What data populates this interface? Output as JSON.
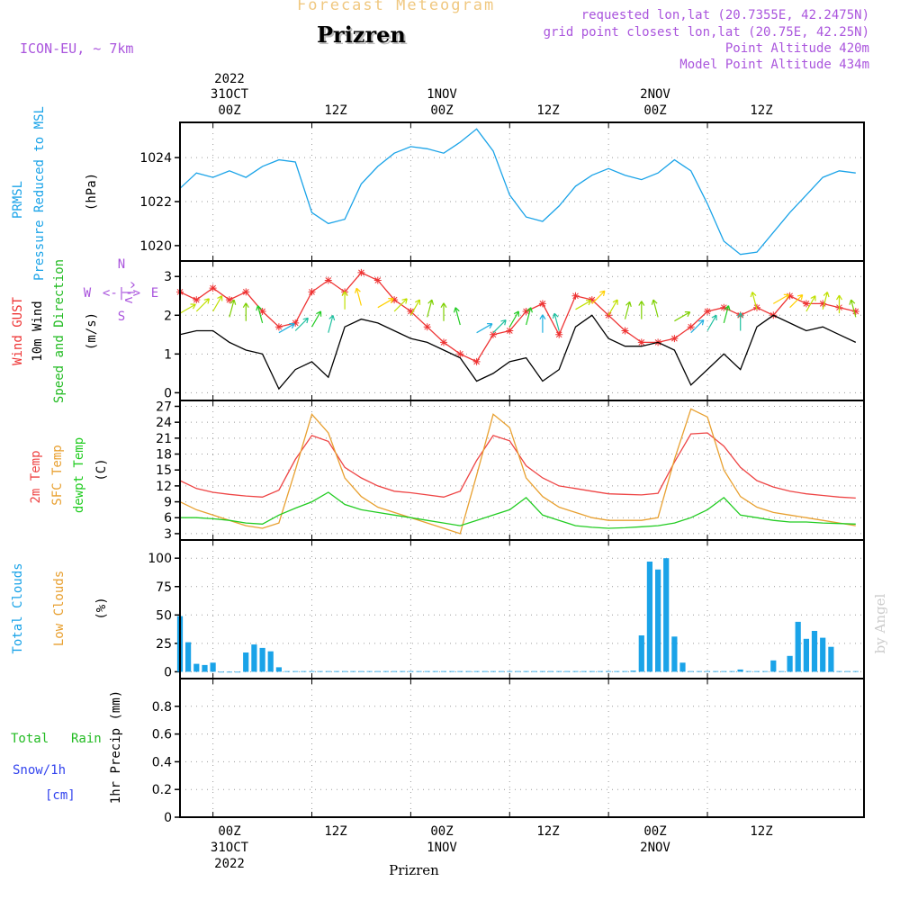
{
  "header": {
    "title_small": "Forecast Meteogram",
    "title": "Prizren",
    "model": "ICON-EU, ~ 7km",
    "requested": "requested lon,lat (20.7355E, 42.2475N)",
    "grid_point": "grid point closest lon,lat (20.75E, 42.25N)",
    "point_alt": "Point Altitude 420m",
    "model_alt": "Model Point Altitude 434m",
    "footer": "Prizren",
    "credit": "by Angel"
  },
  "colors": {
    "pressure": "#1aa3e8",
    "gust": "#ee3333",
    "wind": "#000000",
    "temp": "#ee4444",
    "sfc": "#e8a030",
    "dew": "#22cc22",
    "clouds": "#1aa3e8",
    "purple": "#aa55dd",
    "green_label": "#22bb22",
    "blue_label": "#3344ee"
  },
  "time_axis": {
    "top": {
      "year": "2022",
      "labels": [
        {
          "day": "31OCT",
          "hour": "00Z"
        },
        {
          "day": "",
          "hour": "12Z"
        },
        {
          "day": "1NOV",
          "hour": "00Z"
        },
        {
          "day": "",
          "hour": "12Z"
        },
        {
          "day": "2NOV",
          "hour": "00Z"
        },
        {
          "day": "",
          "hour": "12Z"
        }
      ]
    },
    "bottom": {
      "hours": [
        "00Z",
        "12Z",
        "00Z",
        "12Z",
        "00Z",
        "12Z"
      ],
      "days": [
        "31OCT",
        "1NOV",
        "2NOV"
      ],
      "year": "2022"
    }
  },
  "panel_labels": {
    "pressure": {
      "name": "PRMSL",
      "desc": "Pressure Reduced to MSL",
      "unit": "(hPa)"
    },
    "wind": {
      "gust": "Wind GUST",
      "wind": "10m Wind",
      "dir": "Speed and Direction",
      "unit": "(m/s)",
      "compass": {
        "n": "N",
        "s": "S",
        "w": "W",
        "e": "E",
        "arrow_we": "<-|->",
        "vert": "^|v"
      }
    },
    "temp": {
      "t2m": "2m Temp",
      "sfc": "SFC Temp",
      "dew": "dewpt Temp",
      "unit": "(C)"
    },
    "clouds": {
      "total": "Total Clouds",
      "low": "Low Clouds",
      "unit": "(%)"
    },
    "precip": {
      "rain_total": "Total",
      "rain": "Rain",
      "snow": "Snow/1h",
      "snow_unit": "[cm]",
      "ylabel": "1hr Precip (mm)"
    }
  },
  "chart_data": [
    {
      "type": "line",
      "title": "PRMSL Pressure Reduced to MSL",
      "ylabel": "(hPa)",
      "ylim": [
        1019.3,
        1025.6
      ],
      "yticks": [
        "1020",
        "1022",
        "1024"
      ],
      "x_hours": [
        -4,
        -2,
        0,
        2,
        4,
        6,
        8,
        10,
        12,
        14,
        16,
        18,
        20,
        22,
        24,
        26,
        28,
        30,
        32,
        34,
        36,
        38,
        40,
        42,
        44,
        46,
        48,
        50,
        52,
        54,
        56,
        58,
        60,
        62,
        64,
        66,
        68,
        70,
        72,
        74,
        76,
        78
      ],
      "series": [
        {
          "name": "PRMSL",
          "values": [
            1022.6,
            1023.3,
            1023.1,
            1023.4,
            1023.1,
            1023.6,
            1023.9,
            1023.8,
            1021.5,
            1021.0,
            1021.2,
            1022.8,
            1023.6,
            1024.2,
            1024.5,
            1024.4,
            1024.2,
            1024.7,
            1025.3,
            1024.3,
            1022.3,
            1021.3,
            1021.1,
            1021.8,
            1022.7,
            1023.2,
            1023.5,
            1023.2,
            1023.0,
            1023.3,
            1023.9,
            1023.4,
            1021.9,
            1020.2,
            1019.6,
            1019.7,
            1020.6,
            1021.5,
            1022.3,
            1023.1,
            1023.4,
            1023.3
          ]
        }
      ]
    },
    {
      "type": "line",
      "title": "Wind GUST / 10m Wind Speed and Direction",
      "ylabel": "(m/s)",
      "ylim": [
        -0.2,
        3.4
      ],
      "yticks": [
        "0",
        "1",
        "2",
        "3"
      ],
      "x_hours": [
        -4,
        -2,
        0,
        2,
        4,
        6,
        8,
        10,
        12,
        14,
        16,
        18,
        20,
        22,
        24,
        26,
        28,
        30,
        32,
        34,
        36,
        38,
        40,
        42,
        44,
        46,
        48,
        50,
        52,
        54,
        56,
        58,
        60,
        62,
        64,
        66,
        68,
        70,
        72,
        74,
        76,
        78
      ],
      "series": [
        {
          "name": "Wind GUST",
          "values": [
            2.6,
            2.4,
            2.7,
            2.4,
            2.6,
            2.1,
            1.7,
            1.8,
            2.6,
            2.9,
            2.6,
            3.1,
            2.9,
            2.4,
            2.1,
            1.7,
            1.3,
            1.0,
            0.8,
            1.5,
            1.6,
            2.1,
            2.3,
            1.5,
            2.5,
            2.4,
            2.0,
            1.6,
            1.3,
            1.3,
            1.4,
            1.7,
            2.1,
            2.2,
            2.0,
            2.2,
            2.0,
            2.5,
            2.3,
            2.3,
            2.2,
            2.1
          ]
        },
        {
          "name": "10m Wind",
          "values": [
            1.5,
            1.6,
            1.6,
            1.3,
            1.1,
            1.0,
            0.1,
            0.6,
            0.8,
            0.4,
            1.7,
            1.9,
            1.8,
            1.6,
            1.4,
            1.3,
            1.1,
            0.9,
            0.3,
            0.5,
            0.8,
            0.9,
            0.3,
            0.6,
            1.7,
            2.0,
            1.4,
            1.2,
            1.2,
            1.3,
            1.1,
            0.2,
            0.6,
            1.0,
            0.6,
            1.7,
            2.0,
            1.8,
            1.6,
            1.7,
            1.5,
            1.3
          ]
        }
      ]
    },
    {
      "type": "line",
      "title": "2m Temp / SFC Temp / dewpt Temp",
      "ylabel": "(C)",
      "ylim": [
        1.8,
        28.1
      ],
      "yticks": [
        "3",
        "6",
        "9",
        "12",
        "15",
        "18",
        "21",
        "24",
        "27"
      ],
      "x_hours": [
        -4,
        -2,
        0,
        2,
        4,
        6,
        8,
        10,
        12,
        14,
        16,
        18,
        20,
        22,
        24,
        26,
        28,
        30,
        32,
        34,
        36,
        38,
        40,
        42,
        44,
        46,
        48,
        50,
        52,
        54,
        56,
        58,
        60,
        62,
        64,
        66,
        68,
        70,
        72,
        74,
        76,
        78
      ],
      "series": [
        {
          "name": "2m Temp",
          "values": [
            13.0,
            11.5,
            10.8,
            10.4,
            10.1,
            9.9,
            11.2,
            17.0,
            21.5,
            20.4,
            15.5,
            13.5,
            12.0,
            11.0,
            10.7,
            10.3,
            9.9,
            11.0,
            16.8,
            21.5,
            20.5,
            15.8,
            13.5,
            12.0,
            11.5,
            11.0,
            10.5,
            10.4,
            10.3,
            10.6,
            16.5,
            21.8,
            22.0,
            19.5,
            15.5,
            13.0,
            11.8,
            11.0,
            10.5,
            10.2,
            9.9,
            9.7
          ]
        },
        {
          "name": "SFC Temp",
          "values": [
            9.0,
            7.5,
            6.5,
            5.5,
            4.5,
            4.0,
            5.0,
            15.0,
            25.5,
            22.0,
            13.5,
            10.0,
            8.0,
            7.0,
            6.0,
            5.0,
            4.0,
            3.0,
            14.0,
            25.5,
            23.0,
            13.5,
            10.0,
            8.0,
            7.0,
            6.0,
            5.5,
            5.5,
            5.5,
            6.0,
            17.0,
            26.5,
            25.0,
            15.0,
            10.0,
            8.0,
            7.0,
            6.5,
            6.0,
            5.5,
            5.0,
            4.5
          ]
        },
        {
          "name": "dewpt Temp",
          "values": [
            6.0,
            6.0,
            5.8,
            5.5,
            5.0,
            4.8,
            6.5,
            7.8,
            9.0,
            10.8,
            8.5,
            7.5,
            7.0,
            6.5,
            6.0,
            5.5,
            5.0,
            4.5,
            5.5,
            6.5,
            7.5,
            9.8,
            6.5,
            5.5,
            4.5,
            4.2,
            4.0,
            4.1,
            4.3,
            4.5,
            5.0,
            6.0,
            7.5,
            9.8,
            6.5,
            6.0,
            5.5,
            5.2,
            5.2,
            5.0,
            4.9,
            4.8
          ]
        }
      ]
    },
    {
      "type": "bar",
      "title": "Total Clouds / Low Clouds",
      "ylabel": "(%)",
      "ylim": [
        -6,
        116
      ],
      "yticks": [
        "0",
        "25",
        "50",
        "75",
        "100"
      ],
      "x_hours": [
        -4,
        -3,
        -2,
        -1,
        0,
        1,
        2,
        3,
        4,
        5,
        6,
        7,
        8,
        9,
        10,
        11,
        12,
        13,
        14,
        15,
        16,
        17,
        18,
        19,
        20,
        21,
        22,
        23,
        24,
        25,
        26,
        27,
        28,
        29,
        30,
        31,
        32,
        33,
        34,
        35,
        36,
        37,
        38,
        39,
        40,
        41,
        42,
        43,
        44,
        45,
        46,
        47,
        48,
        49,
        50,
        51,
        52,
        53,
        54,
        55,
        56,
        57,
        58,
        59,
        60,
        61,
        62,
        63,
        64,
        65,
        66,
        67,
        68,
        69,
        70,
        71,
        72,
        73,
        74,
        75,
        76,
        77,
        78
      ],
      "series": [
        {
          "name": "Total Clouds",
          "values": [
            49,
            26,
            7,
            6,
            8,
            0,
            0,
            0,
            17,
            24,
            21,
            18,
            4,
            0.6,
            0.6,
            0.6,
            0.6,
            0.6,
            0.6,
            0.6,
            0.6,
            0.6,
            0.6,
            0.6,
            0.6,
            0.6,
            0.6,
            0.6,
            0.6,
            0.6,
            0.6,
            0.6,
            0.6,
            0.6,
            0.6,
            0.6,
            0.6,
            0.6,
            0.6,
            0.6,
            0.6,
            0.6,
            0.6,
            0.6,
            0.6,
            0.6,
            0.6,
            0.6,
            0.6,
            0.6,
            0.6,
            0.6,
            0.6,
            0.6,
            0.6,
            1,
            32,
            97,
            90,
            100,
            31,
            8,
            0.6,
            0.6,
            0.6,
            0.6,
            0.6,
            0.6,
            2,
            0.6,
            0.6,
            0.6,
            10,
            0.6,
            14,
            44,
            29,
            36,
            30,
            22,
            0.6,
            0.6,
            0.6
          ]
        }
      ]
    },
    {
      "type": "bar",
      "title": "Total Rain / Snow 1h",
      "ylabel": "1hr Precip (mm)",
      "ylim": [
        0,
        1.0
      ],
      "yticks": [
        "0",
        "0.2",
        "0.4",
        "0.6",
        "0.8"
      ],
      "series": [
        {
          "name": "Rain",
          "values": []
        }
      ]
    }
  ]
}
